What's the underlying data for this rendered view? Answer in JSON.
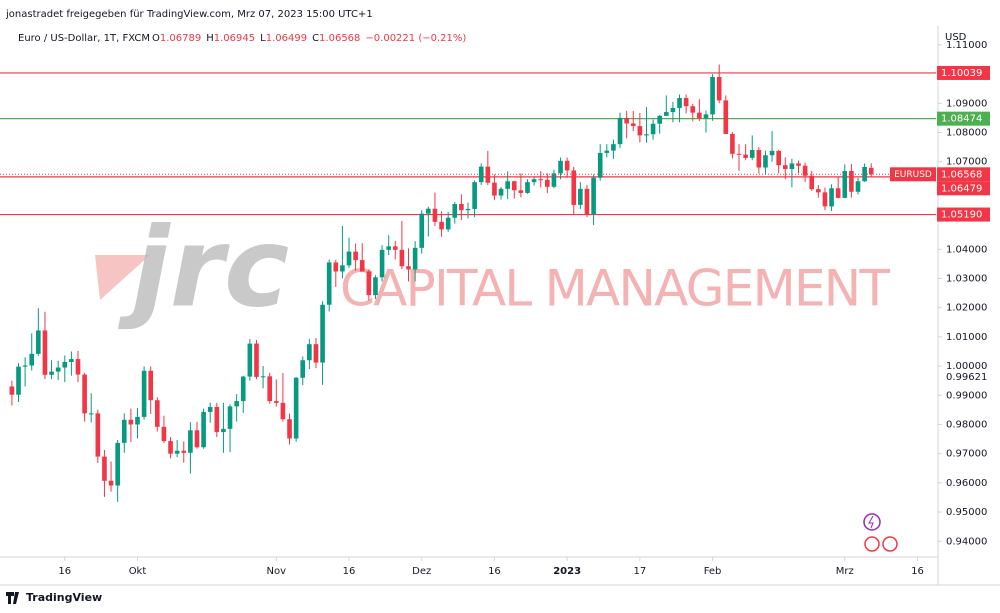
{
  "header": {
    "shared_by": "jonastradet freigegeben für TradingView.com, Mrz 07, 2023 15:00 UTC+1",
    "brand": "TradingView"
  },
  "chart_data": {
    "type": "candlestick",
    "title": "Euro / US-Dollar, 1T, FXCM",
    "legend_ohlc": [
      {
        "key": "O",
        "value": 1.06789
      },
      {
        "key": "H",
        "value": 1.06945
      },
      {
        "key": "L",
        "value": 1.06499
      },
      {
        "key": "C",
        "value": 1.06568
      }
    ],
    "legend_change": "−0.00221 (−0.21%)",
    "currency": "USD",
    "watermark": {
      "logo": "jrc",
      "text": "CAPITAL MANAGEMENT"
    },
    "up_color": "#089981",
    "down_color": "#f23645",
    "candles": [
      [
        0.993,
        0.995,
        0.9865,
        0.9902
      ],
      [
        0.9902,
        1.001,
        0.9877,
        0.9998
      ],
      [
        0.9998,
        1.003,
        0.993,
        1.0002
      ],
      [
        1.0002,
        1.0112,
        0.9985,
        1.0042
      ],
      [
        1.0042,
        1.0198,
        1.0035,
        1.0122
      ],
      [
        1.0122,
        1.0186,
        0.9955,
        0.997
      ],
      [
        0.997,
        1.002,
        0.9955,
        0.9981
      ],
      [
        0.9981,
        1.0018,
        0.9952,
        0.9995
      ],
      [
        0.9995,
        1.0036,
        0.9945,
        1.0014
      ],
      [
        1.0014,
        1.005,
        0.9967,
        1.0024
      ],
      [
        1.0024,
        1.0052,
        0.9945,
        0.9971
      ],
      [
        0.9971,
        0.9976,
        0.981,
        0.9838
      ],
      [
        0.9838,
        0.9907,
        0.9807,
        0.9838
      ],
      [
        0.9838,
        0.9851,
        0.9668,
        0.969
      ],
      [
        0.969,
        0.9713,
        0.9552,
        0.9607
      ],
      [
        0.9607,
        0.9673,
        0.957,
        0.9591
      ],
      [
        0.9591,
        0.9747,
        0.9535,
        0.9737
      ],
      [
        0.9737,
        0.9838,
        0.9703,
        0.9816
      ],
      [
        0.9816,
        0.9854,
        0.974,
        0.98
      ],
      [
        0.98,
        0.9856,
        0.9752,
        0.9826
      ],
      [
        0.9826,
        0.9999,
        0.9817,
        0.9984
      ],
      [
        0.9984,
        0.9999,
        0.9836,
        0.9883
      ],
      [
        0.9883,
        0.9893,
        0.9776,
        0.9792
      ],
      [
        0.9792,
        0.983,
        0.9737,
        0.9743
      ],
      [
        0.9743,
        0.9757,
        0.9684,
        0.97
      ],
      [
        0.97,
        0.9747,
        0.9688,
        0.971
      ],
      [
        0.971,
        0.9742,
        0.9669,
        0.9703
      ],
      [
        0.9703,
        0.9808,
        0.9632,
        0.978
      ],
      [
        0.978,
        0.9809,
        0.9717,
        0.9722
      ],
      [
        0.9722,
        0.9854,
        0.9717,
        0.9843
      ],
      [
        0.9843,
        0.9875,
        0.9806,
        0.986
      ],
      [
        0.986,
        0.9874,
        0.9757,
        0.9774
      ],
      [
        0.9774,
        0.9874,
        0.9703,
        0.9785
      ],
      [
        0.9785,
        0.9869,
        0.9705,
        0.9862
      ],
      [
        0.9862,
        0.9904,
        0.981,
        0.988
      ],
      [
        0.988,
        0.9967,
        0.984,
        0.9964
      ],
      [
        0.9964,
        1.0093,
        0.995,
        1.0077
      ],
      [
        1.0077,
        1.0089,
        0.9955,
        0.9963
      ],
      [
        0.9963,
        1.0,
        0.9924,
        0.9965
      ],
      [
        0.9965,
        0.9977,
        0.9871,
        0.988
      ],
      [
        0.988,
        0.9954,
        0.9861,
        0.9874
      ],
      [
        0.9874,
        0.9976,
        0.981,
        0.9818
      ],
      [
        0.9818,
        0.9837,
        0.9731,
        0.9752
      ],
      [
        0.9752,
        0.9963,
        0.9741,
        0.996
      ],
      [
        0.996,
        1.0033,
        0.9935,
        1.002
      ],
      [
        1.002,
        1.0093,
        0.999,
        1.0075
      ],
      [
        1.0075,
        1.0096,
        0.9993,
        1.0012
      ],
      [
        1.0012,
        1.0222,
        0.9936,
        1.021
      ],
      [
        1.021,
        1.0365,
        1.0187,
        1.0355
      ],
      [
        1.0355,
        1.0364,
        1.0271,
        1.0324
      ],
      [
        1.0324,
        1.048,
        1.03,
        1.0345
      ],
      [
        1.0345,
        1.044,
        1.0336,
        1.0392
      ],
      [
        1.0392,
        1.042,
        1.0326,
        1.0363
      ],
      [
        1.0363,
        1.0421,
        1.0325,
        1.0324
      ],
      [
        1.0324,
        1.0331,
        1.0225,
        1.0243
      ],
      [
        1.0243,
        1.0311,
        1.023,
        1.0304
      ],
      [
        1.0304,
        1.0414,
        1.029,
        1.0398
      ],
      [
        1.0398,
        1.0448,
        1.038,
        1.041
      ],
      [
        1.041,
        1.0429,
        1.0365,
        1.0398
      ],
      [
        1.0398,
        1.0497,
        1.0332,
        1.0342
      ],
      [
        1.0342,
        1.0403,
        1.029,
        1.0331
      ],
      [
        1.0331,
        1.0428,
        1.029,
        1.0405
      ],
      [
        1.0405,
        1.0534,
        1.0385,
        1.0522
      ],
      [
        1.0522,
        1.0546,
        1.0444,
        1.0539
      ],
      [
        1.0539,
        1.0594,
        1.048,
        1.0494
      ],
      [
        1.0494,
        1.053,
        1.0443,
        1.0468
      ],
      [
        1.0468,
        1.0528,
        1.046,
        1.0508
      ],
      [
        1.0508,
        1.0562,
        1.0488,
        1.0555
      ],
      [
        1.0555,
        1.0588,
        1.05,
        1.0534
      ],
      [
        1.0534,
        1.056,
        1.0506,
        1.0538
      ],
      [
        1.0538,
        1.0636,
        1.051,
        1.063
      ],
      [
        1.063,
        1.0694,
        1.062,
        1.0683
      ],
      [
        1.0683,
        1.0737,
        1.062,
        1.0628
      ],
      [
        1.0628,
        1.0656,
        1.0568,
        1.0584
      ],
      [
        1.0584,
        1.0613,
        1.057,
        1.0607
      ],
      [
        1.0607,
        1.0667,
        1.0572,
        1.0633
      ],
      [
        1.0633,
        1.0635,
        1.0574,
        1.0602
      ],
      [
        1.0602,
        1.066,
        1.0578,
        1.0593
      ],
      [
        1.0593,
        1.064,
        1.059,
        1.063
      ],
      [
        1.063,
        1.0647,
        1.0618,
        1.064
      ],
      [
        1.064,
        1.0668,
        1.0612,
        1.0638
      ],
      [
        1.0638,
        1.066,
        1.0592,
        1.0614
      ],
      [
        1.0614,
        1.0673,
        1.0609,
        1.066
      ],
      [
        1.066,
        1.0714,
        1.064,
        1.0703
      ],
      [
        1.0703,
        1.0714,
        1.0645,
        1.067
      ],
      [
        1.067,
        1.0683,
        1.0519,
        1.0552
      ],
      [
        1.0552,
        1.063,
        1.0538,
        1.0607
      ],
      [
        1.0607,
        1.0621,
        1.051,
        1.052
      ],
      [
        1.052,
        1.0656,
        1.0483,
        1.0645
      ],
      [
        1.0645,
        1.076,
        1.0635,
        1.073
      ],
      [
        1.073,
        1.076,
        1.0715,
        1.0738
      ],
      [
        1.0738,
        1.0776,
        1.071,
        1.076
      ],
      [
        1.076,
        1.0868,
        1.0747,
        1.085
      ],
      [
        1.085,
        1.0874,
        1.078,
        1.0831
      ],
      [
        1.0831,
        1.0874,
        1.0805,
        1.0822
      ],
      [
        1.0822,
        1.0867,
        1.0766,
        1.079
      ],
      [
        1.079,
        1.0887,
        1.0765,
        1.0794
      ],
      [
        1.0794,
        1.0844,
        1.0775,
        1.083
      ],
      [
        1.083,
        1.086,
        1.0796,
        1.0857
      ],
      [
        1.0857,
        1.0927,
        1.0856,
        1.087
      ],
      [
        1.087,
        1.0905,
        1.0835,
        1.0884
      ],
      [
        1.0884,
        1.093,
        1.0835,
        1.0918
      ],
      [
        1.0918,
        1.093,
        1.0865,
        1.089
      ],
      [
        1.089,
        1.0898,
        1.0838,
        1.0868
      ],
      [
        1.0868,
        1.0914,
        1.0839,
        1.0848
      ],
      [
        1.0848,
        1.0875,
        1.08,
        1.0862
      ],
      [
        1.0862,
        1.1,
        1.084,
        1.099
      ],
      [
        1.099,
        1.1033,
        1.09,
        1.091
      ],
      [
        1.091,
        1.0927,
        1.0795,
        1.0795
      ],
      [
        1.0795,
        1.0801,
        1.0711,
        1.0727
      ],
      [
        1.0727,
        1.076,
        1.0669,
        1.0724
      ],
      [
        1.0724,
        1.076,
        1.0705,
        1.0713
      ],
      [
        1.0713,
        1.079,
        1.0705,
        1.074
      ],
      [
        1.074,
        1.075,
        1.066,
        1.068
      ],
      [
        1.068,
        1.0738,
        1.0655,
        1.0722
      ],
      [
        1.0722,
        1.0805,
        1.07,
        1.0737
      ],
      [
        1.0737,
        1.074,
        1.066,
        1.0688
      ],
      [
        1.0688,
        1.0715,
        1.064,
        1.0675
      ],
      [
        1.0675,
        1.071,
        1.0612,
        1.0694
      ],
      [
        1.0694,
        1.0704,
        1.066,
        1.0686
      ],
      [
        1.0686,
        1.0697,
        1.063,
        1.0652
      ],
      [
        1.0652,
        1.0668,
        1.06,
        1.0606
      ],
      [
        1.0606,
        1.062,
        1.0577,
        1.0595
      ],
      [
        1.0595,
        1.0611,
        1.0534,
        1.0547
      ],
      [
        1.0547,
        1.0623,
        1.0531,
        1.0609
      ],
      [
        1.0609,
        1.0646,
        1.0574,
        1.0576
      ],
      [
        1.0576,
        1.0691,
        1.0575,
        1.0668
      ],
      [
        1.0668,
        1.0692,
        1.0577,
        1.0597
      ],
      [
        1.0597,
        1.0644,
        1.0588,
        1.0633
      ],
      [
        1.0633,
        1.0694,
        1.0631,
        1.0682
      ],
      [
        1.06789,
        1.06945,
        1.06499,
        1.06568
      ]
    ],
    "current_price": {
      "name": "EURUSD",
      "value": 1.06568,
      "color": "#f23645"
    },
    "levels": [
      {
        "value": 1.10039,
        "color": "#f23645"
      },
      {
        "value": 1.08474,
        "color": "#4caf50"
      },
      {
        "value": 1.06479,
        "color": "#f23645"
      },
      {
        "value": 1.0519,
        "label": "1.05190",
        "color": "#f23645"
      }
    ],
    "price_marker": 0.99621,
    "xlim": [
      -1.8,
      139.8
    ],
    "xticks": [
      {
        "value": 8,
        "label": "16"
      },
      {
        "value": 19,
        "label": "Okt"
      },
      {
        "value": 40,
        "label": "Nov"
      },
      {
        "value": 51,
        "label": "16"
      },
      {
        "value": 62,
        "label": "Dez"
      },
      {
        "value": 73,
        "label": "16"
      },
      {
        "value": 84,
        "label": "2023"
      },
      {
        "value": 95,
        "label": "17"
      },
      {
        "value": 106,
        "label": "Feb"
      },
      {
        "value": 126,
        "label": "Mrz"
      },
      {
        "value": 137,
        "label": "16"
      }
    ],
    "ylim": [
      0.9353,
      1.1151
    ],
    "yticks": [
      {
        "value": 1.11,
        "label": "1.11000"
      },
      {
        "value": 1.09,
        "label": "1.09000"
      },
      {
        "value": 1.08,
        "label": "1.08000"
      },
      {
        "value": 1.07,
        "label": "1.07000"
      },
      {
        "value": 1.04,
        "label": "1.04000"
      },
      {
        "value": 1.03,
        "label": "1.03000"
      },
      {
        "value": 1.02,
        "label": "1.02000"
      },
      {
        "value": 1.01,
        "label": "1.01000"
      },
      {
        "value": 1,
        "label": "1.00000"
      },
      {
        "value": 0.99,
        "label": "0.99000"
      },
      {
        "value": 0.98,
        "label": "0.98000"
      },
      {
        "value": 0.97,
        "label": "0.97000"
      },
      {
        "value": 0.96,
        "label": "0.96000"
      },
      {
        "value": 0.95,
        "label": "0.95000"
      },
      {
        "value": 0.94,
        "label": "0.94000"
      }
    ],
    "grid": false
  }
}
